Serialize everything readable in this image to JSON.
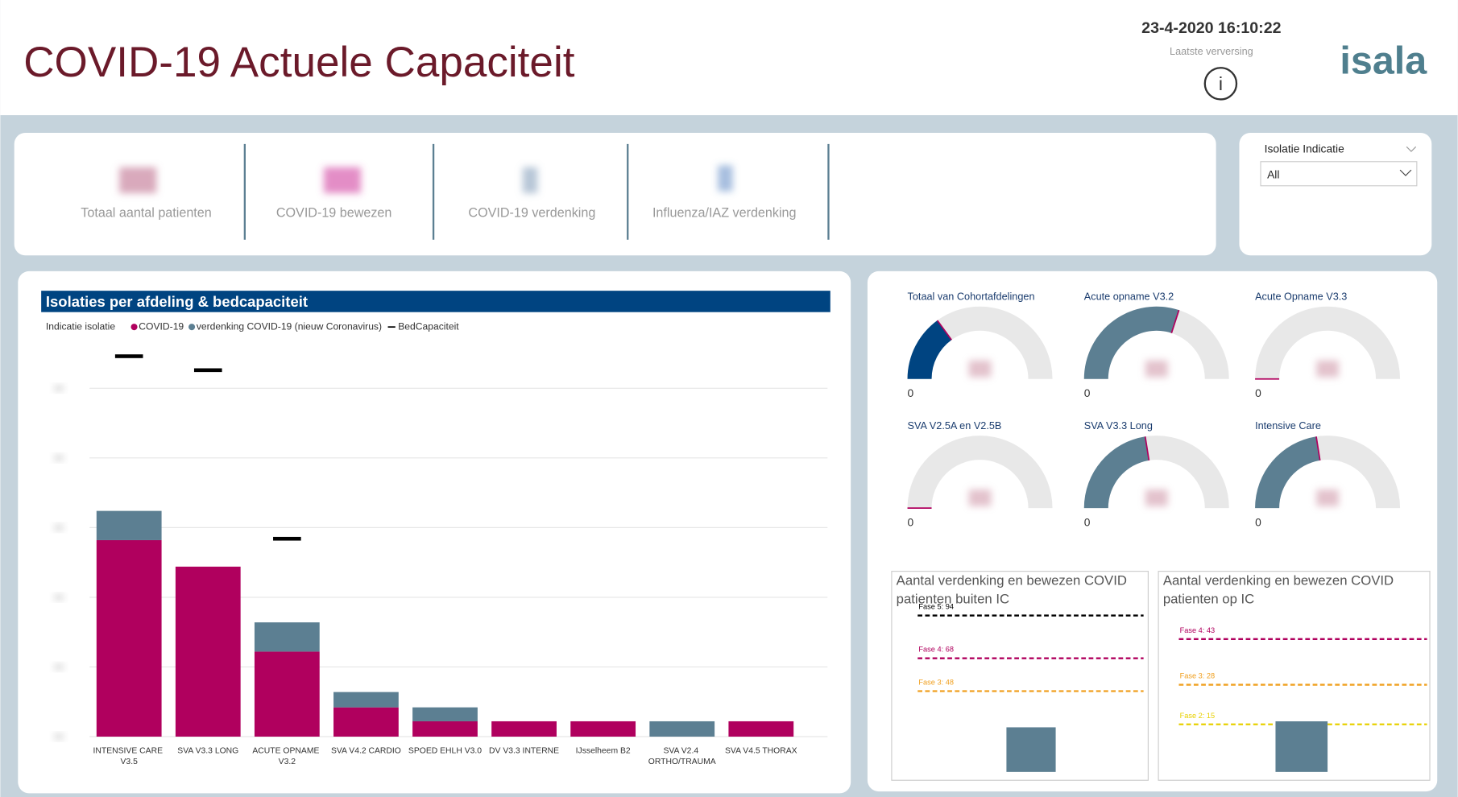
{
  "header": {
    "title": "COVID-19 Actuele Capaciteit",
    "timestamp": "23-4-2020 16:10:22",
    "refresh_label": "Laatste verversing",
    "logo": "isala"
  },
  "kpis": [
    "Totaal aantal patienten",
    "COVID-19 bewezen",
    "COVID-19 verdenking",
    "Influenza/IAZ verdenking"
  ],
  "filter": {
    "label": "Isolatie Indicatie",
    "value": "All"
  },
  "bar_chart": {
    "chart_data": {
      "type": "bar",
      "title": "Isolaties per afdeling & bedcapaciteit",
      "legend_title": "Indicatie isolatie",
      "categories": [
        "INTENSIVE CARE V3.5",
        "SVA V3.3 LONG",
        "ACUTE OPNAME V3.2",
        "SVA V4.2 CARDIO",
        "SPOED EHLH V3.0",
        "DV V3.3 INTERNE",
        "IJsselheem B2",
        "SVA V2.4 ORTHO/TRAUMA",
        "SVA V4.5 THORAX"
      ],
      "series": [
        {
          "name": "COVID-19",
          "color": "#b0005e",
          "values": [
            14.1,
            12.2,
            6.1,
            2.1,
            1.1,
            1.1,
            1.1,
            0,
            1.1
          ]
        },
        {
          "name": "verdenking COVID-19 (nieuw Coronavirus)",
          "color": "#5c7f92",
          "values": [
            2.1,
            0,
            2.1,
            1.1,
            1.0,
            0,
            0,
            1.1,
            0
          ]
        },
        {
          "name": "BedCapaciteit",
          "color": "#000000",
          "values": [
            27.3,
            26.3,
            14.2,
            null,
            null,
            null,
            null,
            null,
            null
          ]
        }
      ],
      "ylim": [
        0,
        25
      ],
      "yticks": [
        0,
        5,
        10,
        15,
        20,
        25
      ],
      "grid": true
    }
  },
  "gauges": [
    {
      "title": "Totaal van Cohortafdelingen",
      "min": 0,
      "max": 100,
      "value": 30,
      "color": "#004481"
    },
    {
      "title": "Acute opname V3.2",
      "min": 0,
      "max": 100,
      "value": 60,
      "color": "#5c7f92"
    },
    {
      "title": "Acute Opname V3.3",
      "min": 0,
      "max": 100,
      "value": 0,
      "color": "#5c7f92"
    },
    {
      "title": "SVA V2.5A en V2.5B",
      "min": 0,
      "max": 100,
      "value": 0,
      "color": "#5c7f92"
    },
    {
      "title": "SVA V3.3 Long",
      "min": 0,
      "max": 100,
      "value": 45,
      "color": "#5c7f92"
    },
    {
      "title": "Intensive Care",
      "min": 0,
      "max": 100,
      "value": 45,
      "color": "#5c7f92"
    }
  ],
  "phase_charts": [
    {
      "chart_data": {
        "type": "bar",
        "title": "Aantal verdenking en bewezen COVID patienten buiten IC",
        "values": [
          26
        ],
        "color": "#5c7f92",
        "ylim": [
          0,
          100
        ],
        "lines": [
          {
            "label": "Fase 5: 94",
            "value": 94,
            "color": "#000000"
          },
          {
            "label": "Fase 4: 68",
            "value": 68,
            "color": "#b0005e"
          },
          {
            "label": "Fase 3: 48",
            "value": 48,
            "color": "#f0a020"
          }
        ]
      }
    },
    {
      "chart_data": {
        "type": "bar",
        "title": "Aantal verdenking en bewezen COVID patienten op IC",
        "values": [
          16
        ],
        "color": "#5c7f92",
        "ylim": [
          0,
          50
        ],
        "lines": [
          {
            "label": "Fase 4: 43",
            "value": 43,
            "color": "#b0005e"
          },
          {
            "label": "Fase 3: 28",
            "value": 28,
            "color": "#f0a020"
          },
          {
            "label": "Fase 2: 15",
            "value": 15,
            "color": "#e8d000"
          }
        ]
      }
    }
  ]
}
